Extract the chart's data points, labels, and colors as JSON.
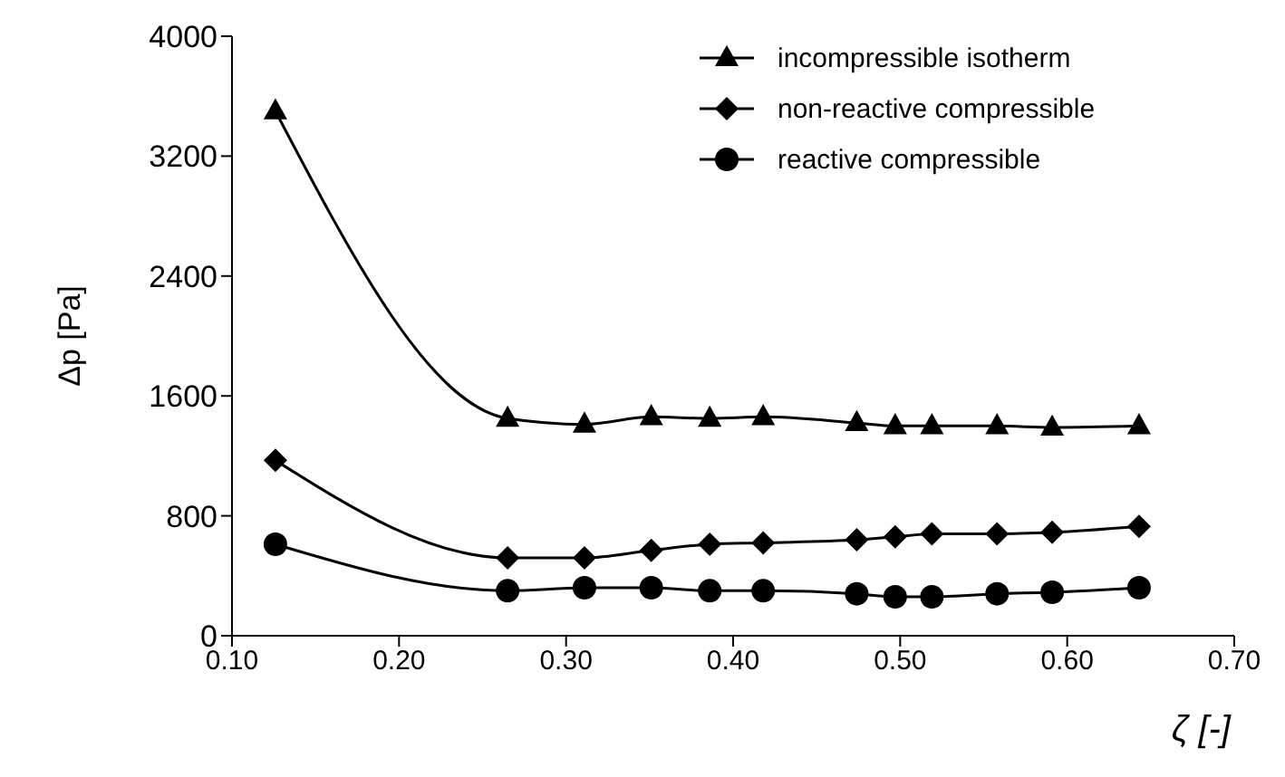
{
  "chart_data": {
    "type": "line",
    "xlabel": "ζ [-]",
    "ylabel": "Δp [Pa]",
    "xlim": [
      0.1,
      0.7
    ],
    "xticks": [
      {
        "value": 0.1,
        "label": "0.10"
      },
      {
        "value": 0.2,
        "label": "0.20"
      },
      {
        "value": 0.3,
        "label": "0.30"
      },
      {
        "value": 0.4,
        "label": "0.40"
      },
      {
        "value": 0.5,
        "label": "0.50"
      },
      {
        "value": 0.6,
        "label": "0.60"
      },
      {
        "value": 0.7,
        "label": "0.70"
      }
    ],
    "ylim": [
      0,
      4000
    ],
    "yticks": [
      0,
      800,
      1600,
      2400,
      3200,
      4000
    ],
    "grid": false,
    "legend": "top right",
    "x": [
      0.126,
      0.265,
      0.311,
      0.351,
      0.386,
      0.418,
      0.474,
      0.497,
      0.519,
      0.558,
      0.591,
      0.643
    ],
    "series": [
      {
        "name": "incompressible isotherm",
        "color": "#000000",
        "marker": "triangle",
        "values": [
          3500,
          1450,
          1410,
          1460,
          1450,
          1460,
          1420,
          1400,
          1400,
          1400,
          1390,
          1400
        ]
      },
      {
        "name": "non-reactive compressible",
        "color": "#000000",
        "marker": "diamond",
        "values": [
          1170,
          520,
          520,
          570,
          610,
          620,
          640,
          660,
          680,
          680,
          690,
          730
        ]
      },
      {
        "name": "reactive compressible",
        "color": "#000000",
        "marker": "circle",
        "values": [
          610,
          300,
          320,
          320,
          300,
          300,
          280,
          260,
          260,
          280,
          290,
          320
        ]
      }
    ]
  }
}
